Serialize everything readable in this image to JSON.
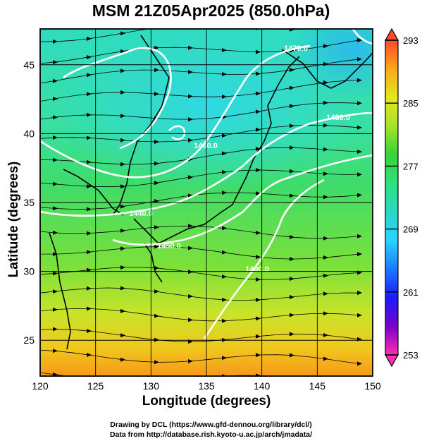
{
  "title": "MSM 21Z05Apr2025 (850.0hPa)",
  "x_axis": {
    "label": "Longitude (degrees)",
    "ticks": [
      120,
      125,
      130,
      135,
      140,
      145,
      150
    ],
    "range": [
      120,
      150
    ]
  },
  "y_axis": {
    "label": "Latitude  (degrees)",
    "ticks": [
      25,
      30,
      35,
      40,
      45
    ],
    "range": [
      22.4,
      47.6
    ]
  },
  "colorbar": {
    "ticks": [
      293,
      285,
      277,
      269,
      261,
      253
    ],
    "stops": [
      "#ff2db4",
      "#7a00c8",
      "#1a1aff",
      "#1c78ff",
      "#28d4ff",
      "#2ad6c8",
      "#2fe07a",
      "#38d23a",
      "#a6e22a",
      "#e4e818",
      "#f7a818",
      "#ff4a2a"
    ]
  },
  "contours": [
    {
      "label": "1470.0"
    },
    {
      "label": "1480.0"
    },
    {
      "label": "1460.0"
    },
    {
      "label": "1450.0"
    },
    {
      "label": "1440.0"
    },
    {
      "label": "1490.0"
    }
  ],
  "credits": {
    "line1": "Drawing by DCL (https://www.gfd-dennou.org/library/dcl/)",
    "line2": "Data from http://database.rish.kyoto-u.ac.jp/arch/jmadata/"
  }
}
